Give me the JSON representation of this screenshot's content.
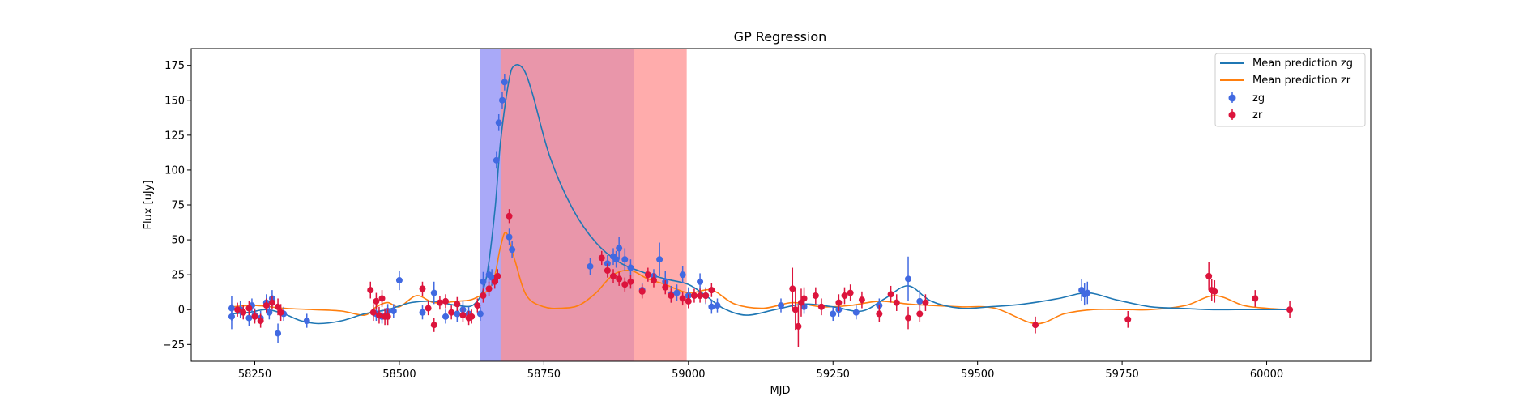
{
  "chart_data": {
    "type": "scatter",
    "title": "GP Regression",
    "xlabel": "MJD",
    "ylabel": "Flux [uJy]",
    "xlim": [
      58140,
      60180
    ],
    "ylim": [
      -37,
      187
    ],
    "xticks": [
      58250,
      58500,
      58750,
      59000,
      59250,
      59500,
      59750,
      60000
    ],
    "yticks": [
      -25,
      0,
      25,
      50,
      75,
      100,
      125,
      150,
      175
    ],
    "grid": false,
    "legend_position": "top-right",
    "legend": [
      "Mean prediction zg",
      "Mean prediction zr",
      "zg",
      "zr"
    ],
    "colors": {
      "mean_zg": "#1f77b4",
      "mean_zr": "#ff7f0e",
      "zg": "#4169e1",
      "zr": "#dc143c",
      "band_blue": "#8c8cf5",
      "band_red": "#ff9090"
    },
    "shaded_regions": [
      {
        "x0": 58640,
        "x1": 58905,
        "color": "#8c8cf5"
      },
      {
        "x0": 58675,
        "x1": 58997,
        "color": "#ff9090"
      }
    ],
    "series": [
      {
        "name": "Mean prediction zg",
        "kind": "line",
        "x": [
          58210,
          58240,
          58270,
          58300,
          58330,
          58360,
          58400,
          58440,
          58480,
          58520,
          58560,
          58600,
          58630,
          58650,
          58665,
          58675,
          58690,
          58700,
          58715,
          58730,
          58760,
          58800,
          58840,
          58880,
          58920,
          58960,
          59000,
          59030,
          59060,
          59100,
          59150,
          59200,
          59250,
          59300,
          59340,
          59380,
          59420,
          59470,
          59520,
          59580,
          59640,
          59690,
          59740,
          59800,
          59850,
          59900,
          59950,
          60000,
          60040
        ],
        "y": [
          -3,
          -2,
          0,
          -3,
          -8,
          -10,
          -8,
          -3,
          0,
          5,
          6,
          3,
          4,
          22,
          70,
          120,
          165,
          175,
          172,
          155,
          110,
          72,
          48,
          34,
          27,
          22,
          18,
          10,
          1,
          -4,
          0,
          4,
          2,
          -1,
          8,
          17,
          6,
          1,
          2,
          4,
          8,
          12,
          7,
          2,
          1,
          0,
          0,
          0,
          0
        ]
      },
      {
        "name": "Mean prediction zr",
        "kind": "line",
        "x": [
          58210,
          58250,
          58300,
          58350,
          58400,
          58440,
          58460,
          58480,
          58500,
          58530,
          58560,
          58600,
          58630,
          58660,
          58675,
          58685,
          58700,
          58720,
          58750,
          58780,
          58810,
          58840,
          58870,
          58900,
          58930,
          58960,
          59000,
          59040,
          59080,
          59130,
          59180,
          59230,
          59280,
          59330,
          59380,
          59420,
          59470,
          59530,
          59600,
          59650,
          59700,
          59760,
          59800,
          59860,
          59910,
          59960,
          60000,
          60040
        ],
        "y": [
          2,
          3,
          1,
          0,
          -1,
          -4,
          2,
          5,
          2,
          10,
          5,
          6,
          8,
          18,
          45,
          55,
          35,
          10,
          2,
          1,
          3,
          12,
          25,
          28,
          22,
          18,
          12,
          14,
          4,
          1,
          5,
          2,
          3,
          6,
          4,
          3,
          2,
          1,
          -10,
          -3,
          0,
          0,
          0,
          3,
          10,
          3,
          1,
          0
        ]
      },
      {
        "name": "zg",
        "kind": "errorbar",
        "x": [
          58210,
          58210,
          58225,
          58240,
          58245,
          58250,
          58260,
          58270,
          58275,
          58280,
          58290,
          58300,
          58340,
          58460,
          58470,
          58480,
          58490,
          58500,
          58540,
          58560,
          58580,
          58600,
          58610,
          58620,
          58640,
          58645,
          58655,
          58660,
          58668,
          58672,
          58678,
          58682,
          58690,
          58695,
          58830,
          58860,
          58870,
          58875,
          58880,
          58890,
          58900,
          58920,
          58940,
          58950,
          58960,
          58970,
          58980,
          58990,
          59000,
          59020,
          59030,
          59040,
          59050,
          59160,
          59200,
          59250,
          59260,
          59290,
          59330,
          59380,
          59400,
          59680,
          59685,
          59690
        ],
        "y": [
          1,
          -5,
          0,
          -6,
          3,
          -4,
          -6,
          5,
          -2,
          8,
          -17,
          -3,
          -8,
          -3,
          -5,
          -1,
          -1,
          21,
          -2,
          12,
          -5,
          -3,
          0,
          -3,
          -3,
          20,
          25,
          23,
          107,
          134,
          150,
          163,
          52,
          43,
          31,
          33,
          38,
          36,
          44,
          36,
          30,
          14,
          24,
          36,
          20,
          11,
          12,
          25,
          10,
          20,
          10,
          2,
          3,
          3,
          2,
          -3,
          0,
          -2,
          3,
          22,
          6,
          14,
          11,
          12
        ],
        "err": [
          9,
          9,
          6,
          6,
          5,
          5,
          5,
          6,
          5,
          6,
          7,
          5,
          5,
          5,
          5,
          5,
          5,
          7,
          5,
          8,
          5,
          6,
          6,
          5,
          5,
          7,
          6,
          6,
          6,
          6,
          6,
          6,
          6,
          6,
          6,
          6,
          6,
          6,
          8,
          8,
          6,
          5,
          5,
          12,
          8,
          6,
          6,
          6,
          6,
          6,
          6,
          5,
          5,
          5,
          5,
          5,
          5,
          5,
          5,
          16,
          8,
          8,
          8,
          8
        ]
      },
      {
        "name": "zr",
        "kind": "errorbar",
        "x": [
          58220,
          58230,
          58240,
          58250,
          58260,
          58270,
          58280,
          58290,
          58295,
          58450,
          58455,
          58460,
          58465,
          58470,
          58475,
          58480,
          58540,
          58550,
          58560,
          58570,
          58580,
          58590,
          58600,
          58610,
          58620,
          58625,
          58635,
          58645,
          58655,
          58665,
          58670,
          58690,
          58850,
          58860,
          58870,
          58880,
          58890,
          58900,
          58920,
          58930,
          58940,
          58960,
          58970,
          58990,
          59000,
          59010,
          59020,
          59030,
          59040,
          59180,
          59185,
          59190,
          59195,
          59200,
          59220,
          59230,
          59260,
          59270,
          59280,
          59300,
          59330,
          59350,
          59360,
          59380,
          59400,
          59410,
          59600,
          59760,
          59900,
          59905,
          59910,
          59980,
          60040
        ],
        "y": [
          0,
          -2,
          1,
          -5,
          -8,
          3,
          5,
          2,
          -2,
          14,
          -2,
          6,
          -4,
          8,
          -5,
          -5,
          15,
          1,
          -11,
          5,
          6,
          -2,
          4,
          -4,
          -6,
          -5,
          3,
          10,
          15,
          20,
          24,
          67,
          37,
          28,
          24,
          22,
          18,
          20,
          13,
          25,
          21,
          16,
          10,
          8,
          6,
          10,
          10,
          10,
          14,
          15,
          0,
          -12,
          5,
          8,
          10,
          2,
          5,
          10,
          12,
          7,
          -3,
          11,
          5,
          -6,
          -3,
          5,
          -11,
          -7,
          24,
          14,
          13,
          8,
          0
        ],
        "err": [
          5,
          5,
          5,
          5,
          5,
          5,
          5,
          6,
          6,
          6,
          6,
          6,
          6,
          6,
          6,
          6,
          5,
          5,
          5,
          5,
          5,
          5,
          5,
          5,
          5,
          5,
          5,
          5,
          5,
          5,
          5,
          5,
          5,
          5,
          5,
          5,
          5,
          5,
          5,
          5,
          5,
          5,
          5,
          5,
          5,
          5,
          5,
          5,
          5,
          15,
          15,
          15,
          10,
          8,
          6,
          6,
          6,
          6,
          6,
          6,
          6,
          6,
          6,
          8,
          6,
          6,
          6,
          6,
          10,
          8,
          8,
          6,
          6
        ]
      }
    ]
  }
}
